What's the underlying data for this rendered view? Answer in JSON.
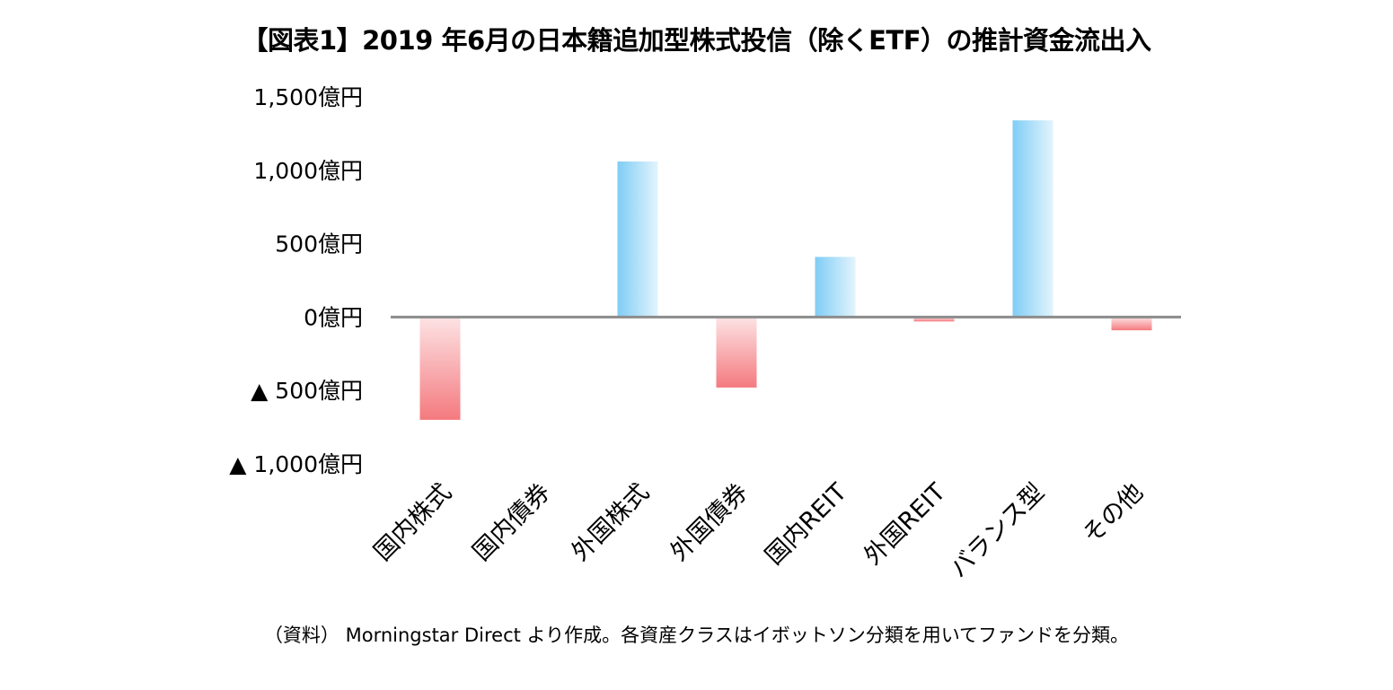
{
  "chart_data": {
    "type": "bar",
    "title": "【図表1】2019 年6月の日本籍追加型株式投信（除くETF）の推計資金流出入",
    "note": "（資料） Morningstar Direct より作成。各資産クラスはイボットソン分類を用いてファンドを分類。",
    "categories": [
      "国内株式",
      "国内債券",
      "外国株式",
      "外国債券",
      "国内REIT",
      "外国REIT",
      "バランス型",
      "その他"
    ],
    "values": [
      -700,
      0,
      1060,
      -480,
      410,
      -30,
      1340,
      -90
    ],
    "yticks": [
      {
        "value": 1500,
        "label": "1,500億円"
      },
      {
        "value": 1000,
        "label": "1,000億円"
      },
      {
        "value": 500,
        "label": "500億円"
      },
      {
        "value": 0,
        "label": "0億円"
      },
      {
        "value": -500,
        "label": "▲ 500億円"
      },
      {
        "value": -1000,
        "label": "▲ 1,000億円"
      }
    ],
    "ylim": [
      -1000,
      1500
    ],
    "xlabel": "",
    "ylabel": "",
    "grid": false,
    "colors": {
      "positive_dark": "#7fcdf5",
      "positive_light": "#e3f4fd",
      "negative_dark": "#f47a7f",
      "negative_light": "#fde3e4",
      "zero_line": "#8c8c8c"
    }
  }
}
